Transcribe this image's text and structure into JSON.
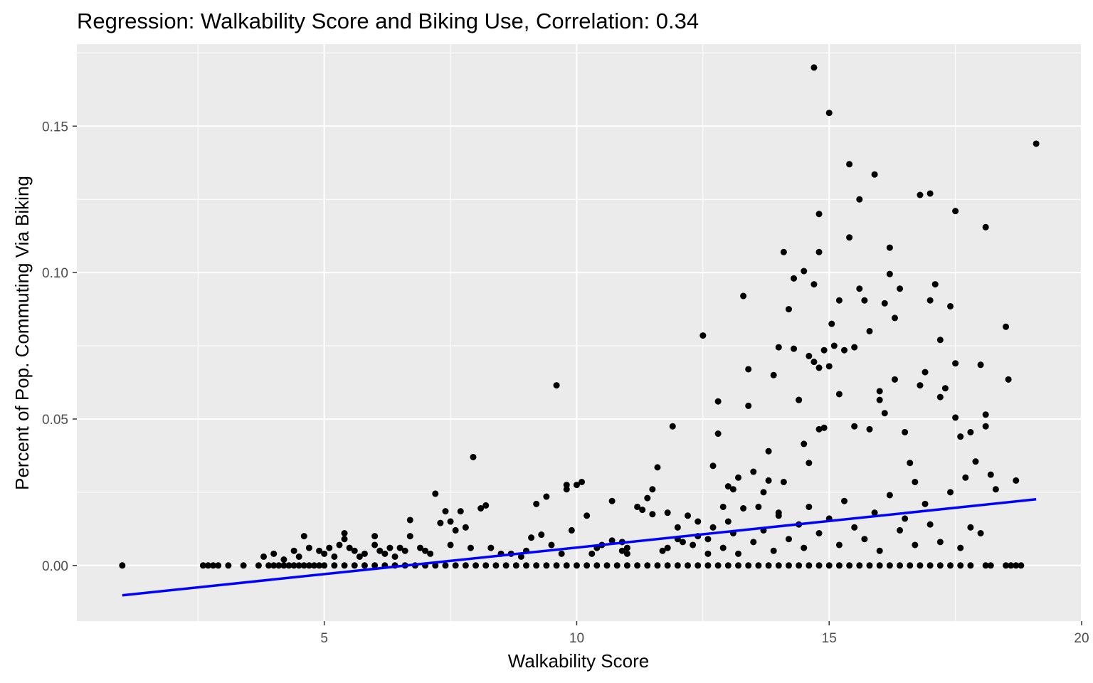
{
  "chart_data": {
    "type": "scatter",
    "title": "Regression: Walkability Score and Biking Use, Correlation: 0.34",
    "xlabel": "Walkability Score",
    "ylabel": "Percent of Pop. Commuting Via Biking",
    "xlim": [
      0.1,
      20.0
    ],
    "ylim": [
      -0.019,
      0.178
    ],
    "x_ticks": [
      5,
      10,
      15,
      20
    ],
    "y_ticks": [
      0.0,
      0.05,
      0.1,
      0.15
    ],
    "x_tick_labels": [
      "5",
      "10",
      "15",
      "20"
    ],
    "y_tick_labels": [
      "0.00",
      "0.05",
      "0.10",
      "0.15"
    ],
    "grid": true,
    "colors": {
      "panel": "#ebebeb",
      "grid": "#ffffff",
      "points": "#000000",
      "regression_line": "#0000ff"
    },
    "regression_line": {
      "x": [
        1.0,
        19.1
      ],
      "y": [
        -0.0102,
        0.0226
      ]
    },
    "series": [
      {
        "values": [
          [
            1.0,
            0.0
          ],
          [
            2.6,
            0.0
          ],
          [
            2.7,
            0.0
          ],
          [
            2.8,
            0.0
          ],
          [
            2.9,
            0.0
          ],
          [
            3.1,
            0.0
          ],
          [
            3.4,
            0.0
          ],
          [
            3.7,
            0.0
          ],
          [
            3.9,
            0.0
          ],
          [
            4.0,
            0.0
          ],
          [
            4.1,
            0.0
          ],
          [
            4.2,
            0.0
          ],
          [
            4.3,
            0.0
          ],
          [
            4.4,
            0.0
          ],
          [
            4.5,
            0.0
          ],
          [
            4.6,
            0.0
          ],
          [
            4.7,
            0.0
          ],
          [
            4.8,
            0.0
          ],
          [
            4.9,
            0.0
          ],
          [
            5.0,
            0.0
          ],
          [
            5.2,
            0.0
          ],
          [
            5.4,
            0.0
          ],
          [
            5.6,
            0.0
          ],
          [
            5.8,
            0.0
          ],
          [
            6.0,
            0.0
          ],
          [
            6.2,
            0.0
          ],
          [
            6.4,
            0.0
          ],
          [
            6.6,
            0.0
          ],
          [
            6.8,
            0.0
          ],
          [
            7.0,
            0.0
          ],
          [
            7.2,
            0.0
          ],
          [
            7.4,
            0.0
          ],
          [
            7.6,
            0.0
          ],
          [
            7.8,
            0.0
          ],
          [
            8.0,
            0.0
          ],
          [
            8.2,
            0.0
          ],
          [
            8.4,
            0.0
          ],
          [
            8.6,
            0.0
          ],
          [
            8.8,
            0.0
          ],
          [
            9.0,
            0.0
          ],
          [
            9.2,
            0.0
          ],
          [
            9.4,
            0.0
          ],
          [
            9.6,
            0.0
          ],
          [
            9.8,
            0.0
          ],
          [
            10.0,
            0.0
          ],
          [
            10.2,
            0.0
          ],
          [
            10.4,
            0.0
          ],
          [
            10.6,
            0.0
          ],
          [
            10.8,
            0.0
          ],
          [
            11.0,
            0.0
          ],
          [
            11.2,
            0.0
          ],
          [
            11.4,
            0.0
          ],
          [
            11.6,
            0.0
          ],
          [
            11.8,
            0.0
          ],
          [
            12.0,
            0.0
          ],
          [
            12.2,
            0.0
          ],
          [
            12.4,
            0.0
          ],
          [
            12.6,
            0.0
          ],
          [
            12.8,
            0.0
          ],
          [
            13.0,
            0.0
          ],
          [
            13.2,
            0.0
          ],
          [
            13.4,
            0.0
          ],
          [
            13.6,
            0.0
          ],
          [
            13.8,
            0.0
          ],
          [
            14.0,
            0.0
          ],
          [
            14.2,
            0.0
          ],
          [
            14.4,
            0.0
          ],
          [
            14.6,
            0.0
          ],
          [
            14.8,
            0.0
          ],
          [
            15.0,
            0.0
          ],
          [
            15.2,
            0.0
          ],
          [
            15.4,
            0.0
          ],
          [
            15.6,
            0.0
          ],
          [
            15.8,
            0.0
          ],
          [
            16.0,
            0.0
          ],
          [
            16.2,
            0.0
          ],
          [
            16.4,
            0.0
          ],
          [
            16.6,
            0.0
          ],
          [
            16.8,
            0.0
          ],
          [
            17.0,
            0.0
          ],
          [
            17.2,
            0.0
          ],
          [
            17.4,
            0.0
          ],
          [
            17.6,
            0.0
          ],
          [
            17.8,
            0.0
          ],
          [
            18.1,
            0.0
          ],
          [
            18.2,
            0.0
          ],
          [
            18.5,
            0.0
          ],
          [
            18.6,
            0.0
          ],
          [
            18.7,
            0.0
          ],
          [
            18.8,
            0.0
          ],
          [
            3.8,
            0.003
          ],
          [
            4.0,
            0.004
          ],
          [
            4.2,
            0.002
          ],
          [
            4.4,
            0.005
          ],
          [
            4.5,
            0.003
          ],
          [
            4.6,
            0.01
          ],
          [
            4.7,
            0.006
          ],
          [
            4.9,
            0.005
          ],
          [
            5.0,
            0.004
          ],
          [
            5.1,
            0.006
          ],
          [
            5.2,
            0.003
          ],
          [
            5.3,
            0.007
          ],
          [
            5.4,
            0.009
          ],
          [
            5.4,
            0.011
          ],
          [
            5.5,
            0.006
          ],
          [
            5.6,
            0.005
          ],
          [
            5.7,
            0.003
          ],
          [
            5.8,
            0.004
          ],
          [
            6.0,
            0.01
          ],
          [
            6.0,
            0.007
          ],
          [
            6.1,
            0.005
          ],
          [
            6.2,
            0.004
          ],
          [
            6.3,
            0.006
          ],
          [
            6.4,
            0.003
          ],
          [
            6.5,
            0.006
          ],
          [
            6.6,
            0.005
          ],
          [
            6.7,
            0.0155
          ],
          [
            6.7,
            0.01
          ],
          [
            6.9,
            0.006
          ],
          [
            7.0,
            0.005
          ],
          [
            7.1,
            0.004
          ],
          [
            7.2,
            0.0245
          ],
          [
            7.3,
            0.0145
          ],
          [
            7.4,
            0.0185
          ],
          [
            7.5,
            0.015
          ],
          [
            7.5,
            0.007
          ],
          [
            7.6,
            0.012
          ],
          [
            7.7,
            0.0185
          ],
          [
            7.8,
            0.013
          ],
          [
            7.9,
            0.006
          ],
          [
            7.95,
            0.037
          ],
          [
            8.1,
            0.0195
          ],
          [
            8.2,
            0.0205
          ],
          [
            8.3,
            0.006
          ],
          [
            8.5,
            0.004
          ],
          [
            8.7,
            0.004
          ],
          [
            8.9,
            0.003
          ],
          [
            9.0,
            0.005
          ],
          [
            9.1,
            0.0095
          ],
          [
            9.2,
            0.021
          ],
          [
            9.3,
            0.0105
          ],
          [
            9.4,
            0.0235
          ],
          [
            9.5,
            0.007
          ],
          [
            9.6,
            0.0615
          ],
          [
            9.7,
            0.004
          ],
          [
            9.8,
            0.0275
          ],
          [
            9.8,
            0.026
          ],
          [
            9.9,
            0.012
          ],
          [
            10.0,
            0.0275
          ],
          [
            10.1,
            0.0285
          ],
          [
            10.2,
            0.017
          ],
          [
            10.3,
            0.004
          ],
          [
            10.4,
            0.006
          ],
          [
            10.5,
            0.007
          ],
          [
            10.7,
            0.0085
          ],
          [
            10.7,
            0.022
          ],
          [
            10.9,
            0.005
          ],
          [
            11.0,
            0.006
          ],
          [
            11.2,
            0.02
          ],
          [
            11.3,
            0.019
          ],
          [
            11.4,
            0.023
          ],
          [
            11.5,
            0.026
          ],
          [
            11.5,
            0.0175
          ],
          [
            11.6,
            0.0335
          ],
          [
            11.7,
            0.005
          ],
          [
            11.8,
            0.018
          ],
          [
            11.9,
            0.0475
          ],
          [
            12.0,
            0.013
          ],
          [
            12.1,
            0.008
          ],
          [
            12.2,
            0.017
          ],
          [
            12.3,
            0.007
          ],
          [
            12.4,
            0.015
          ],
          [
            12.5,
            0.0785
          ],
          [
            12.6,
            0.009
          ],
          [
            12.7,
            0.034
          ],
          [
            12.8,
            0.045
          ],
          [
            12.8,
            0.056
          ],
          [
            12.9,
            0.02
          ],
          [
            13.0,
            0.027
          ],
          [
            13.0,
            0.015
          ],
          [
            13.1,
            0.026
          ],
          [
            13.2,
            0.03
          ],
          [
            13.3,
            0.0195
          ],
          [
            13.3,
            0.092
          ],
          [
            13.4,
            0.0545
          ],
          [
            13.4,
            0.067
          ],
          [
            13.5,
            0.032
          ],
          [
            13.6,
            0.02
          ],
          [
            13.7,
            0.025
          ],
          [
            13.8,
            0.039
          ],
          [
            13.8,
            0.029
          ],
          [
            13.9,
            0.065
          ],
          [
            14.0,
            0.0745
          ],
          [
            14.0,
            0.018
          ],
          [
            14.1,
            0.0285
          ],
          [
            14.1,
            0.107
          ],
          [
            14.2,
            0.0875
          ],
          [
            14.3,
            0.098
          ],
          [
            14.3,
            0.074
          ],
          [
            14.4,
            0.0565
          ],
          [
            14.4,
            0.0565
          ],
          [
            14.5,
            0.1005
          ],
          [
            14.5,
            0.0415
          ],
          [
            14.6,
            0.0715
          ],
          [
            14.6,
            0.035
          ],
          [
            14.7,
            0.0695
          ],
          [
            14.8,
            0.0675
          ],
          [
            14.8,
            0.0465
          ],
          [
            14.9,
            0.047
          ],
          [
            14.7,
            0.17
          ],
          [
            14.7,
            0.096
          ],
          [
            14.8,
            0.12
          ],
          [
            14.8,
            0.107
          ],
          [
            14.9,
            0.0735
          ],
          [
            15.0,
            0.068
          ],
          [
            15.0,
            0.1545
          ],
          [
            15.05,
            0.0825
          ],
          [
            15.1,
            0.075
          ],
          [
            15.2,
            0.0905
          ],
          [
            15.2,
            0.0585
          ],
          [
            15.3,
            0.0735
          ],
          [
            15.4,
            0.112
          ],
          [
            15.4,
            0.137
          ],
          [
            15.5,
            0.0745
          ],
          [
            15.5,
            0.0475
          ],
          [
            15.6,
            0.0945
          ],
          [
            15.6,
            0.125
          ],
          [
            15.7,
            0.0905
          ],
          [
            15.8,
            0.08
          ],
          [
            15.8,
            0.0465
          ],
          [
            15.9,
            0.1335
          ],
          [
            16.0,
            0.0565
          ],
          [
            16.0,
            0.0595
          ],
          [
            16.1,
            0.0895
          ],
          [
            16.1,
            0.052
          ],
          [
            16.2,
            0.1085
          ],
          [
            16.2,
            0.0995
          ],
          [
            16.3,
            0.0635
          ],
          [
            16.3,
            0.0845
          ],
          [
            16.4,
            0.0945
          ],
          [
            16.5,
            0.0455
          ],
          [
            16.6,
            0.035
          ],
          [
            16.7,
            0.0285
          ],
          [
            16.8,
            0.0615
          ],
          [
            16.8,
            0.1265
          ],
          [
            16.9,
            0.066
          ],
          [
            17.0,
            0.127
          ],
          [
            17.0,
            0.0905
          ],
          [
            17.1,
            0.096
          ],
          [
            17.2,
            0.077
          ],
          [
            17.2,
            0.0575
          ],
          [
            17.3,
            0.0605
          ],
          [
            17.4,
            0.0885
          ],
          [
            17.5,
            0.069
          ],
          [
            17.5,
            0.0505
          ],
          [
            17.5,
            0.121
          ],
          [
            17.6,
            0.044
          ],
          [
            17.7,
            0.03
          ],
          [
            17.8,
            0.0455
          ],
          [
            17.9,
            0.0355
          ],
          [
            18.0,
            0.0685
          ],
          [
            18.1,
            0.1155
          ],
          [
            18.1,
            0.0515
          ],
          [
            18.1,
            0.0475
          ],
          [
            18.2,
            0.031
          ],
          [
            18.3,
            0.026
          ],
          [
            18.5,
            0.0815
          ],
          [
            18.55,
            0.0635
          ],
          [
            18.7,
            0.029
          ],
          [
            19.1,
            0.144
          ],
          [
            13.5,
            0.008
          ],
          [
            13.7,
            0.012
          ],
          [
            13.9,
            0.005
          ],
          [
            14.0,
            0.017
          ],
          [
            14.2,
            0.009
          ],
          [
            14.4,
            0.014
          ],
          [
            14.5,
            0.006
          ],
          [
            14.6,
            0.02
          ],
          [
            14.8,
            0.011
          ],
          [
            15.0,
            0.016
          ],
          [
            15.2,
            0.007
          ],
          [
            15.3,
            0.022
          ],
          [
            15.5,
            0.013
          ],
          [
            15.7,
            0.009
          ],
          [
            15.9,
            0.018
          ],
          [
            16.0,
            0.005
          ],
          [
            16.2,
            0.024
          ],
          [
            16.4,
            0.012
          ],
          [
            16.5,
            0.016
          ],
          [
            16.7,
            0.007
          ],
          [
            16.9,
            0.021
          ],
          [
            17.0,
            0.014
          ],
          [
            17.2,
            0.008
          ],
          [
            17.4,
            0.025
          ],
          [
            17.6,
            0.006
          ],
          [
            17.8,
            0.013
          ],
          [
            18.0,
            0.011
          ],
          [
            12.9,
            0.006
          ],
          [
            13.1,
            0.011
          ],
          [
            13.2,
            0.004
          ],
          [
            12.4,
            0.01
          ],
          [
            12.6,
            0.004
          ],
          [
            12.7,
            0.013
          ],
          [
            12.0,
            0.009
          ],
          [
            11.8,
            0.006
          ],
          [
            11.0,
            0.004
          ],
          [
            10.9,
            0.008
          ]
        ]
      }
    ]
  }
}
